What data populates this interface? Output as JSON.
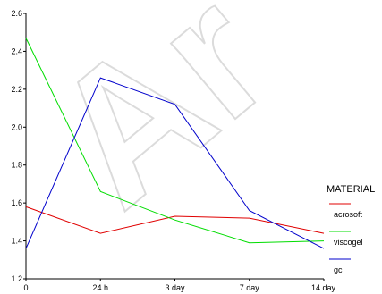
{
  "watermark": {
    "text": "Ar"
  },
  "chart_data": {
    "type": "line",
    "categories": [
      "0",
      "24 h",
      "3 day",
      "7 day",
      "14 day"
    ],
    "ylim": [
      1.2,
      2.6
    ],
    "yticks": [
      1.2,
      1.4,
      1.6,
      1.8,
      2.0,
      2.2,
      2.4,
      2.6
    ],
    "ytick_labels": [
      "1.2",
      "1.4",
      "1.6",
      "1.8",
      "2.0",
      "2.2",
      "2.4",
      "2.6"
    ],
    "xlabel": "",
    "ylabel": "",
    "grid": false,
    "legend": {
      "title": "MATERIAL",
      "position": "right"
    },
    "series": [
      {
        "name": "acrosoft",
        "color": "#e00000",
        "values": [
          1.58,
          1.44,
          1.53,
          1.52,
          1.44
        ]
      },
      {
        "name": "viscogel",
        "color": "#00dd00",
        "values": [
          2.47,
          1.66,
          1.51,
          1.39,
          1.4
        ]
      },
      {
        "name": "gc",
        "color": "#0000cc",
        "values": [
          1.36,
          2.26,
          2.12,
          1.56,
          1.36
        ]
      }
    ]
  }
}
